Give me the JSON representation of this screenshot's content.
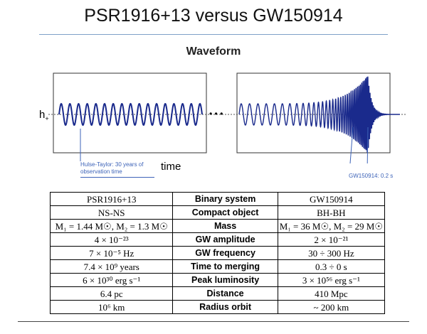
{
  "title": "PSR1916+13 versus  GW150914",
  "section_heading": "Waveform",
  "waveform": {
    "y_label": "h",
    "y_label_sub": "+",
    "ellipsis": "• • •",
    "x_label": "time",
    "annotation_left": "Hulse-Taylor: 30 years of observation time",
    "annotation_right": "GW150914: 0.2 s",
    "wave_color": "#1a2a8c",
    "annotation_color": "#3d63b8"
  },
  "table": {
    "rows": [
      [
        "PSR1916+13",
        "Binary system",
        "GW150914"
      ],
      [
        "NS-NS",
        "Compact object",
        "BH-BH"
      ],
      [
        "M₁ = 1.44 M☉, M₂ = 1.3 M☉",
        "Mass",
        "M₁ = 36 M☉, M₂ = 29 M☉"
      ],
      [
        "4 × 10⁻²³",
        "GW amplitude",
        "2 × 10⁻²¹"
      ],
      [
        "7 × 10⁻⁵ Hz",
        "GW frequency",
        "30 ÷ 300 Hz"
      ],
      [
        "7.4 × 10⁹ years",
        "Time to merging",
        "0.3 ÷ 0 s"
      ],
      [
        "6 × 10³⁰ erg s⁻¹",
        "Peak luminosity",
        "3 × 10⁵⁶ erg s⁻¹"
      ],
      [
        "6.4 pc",
        "Distance",
        "410 Mpc"
      ],
      [
        "10⁶ km",
        "Radius orbit",
        "~ 200 km"
      ]
    ]
  }
}
